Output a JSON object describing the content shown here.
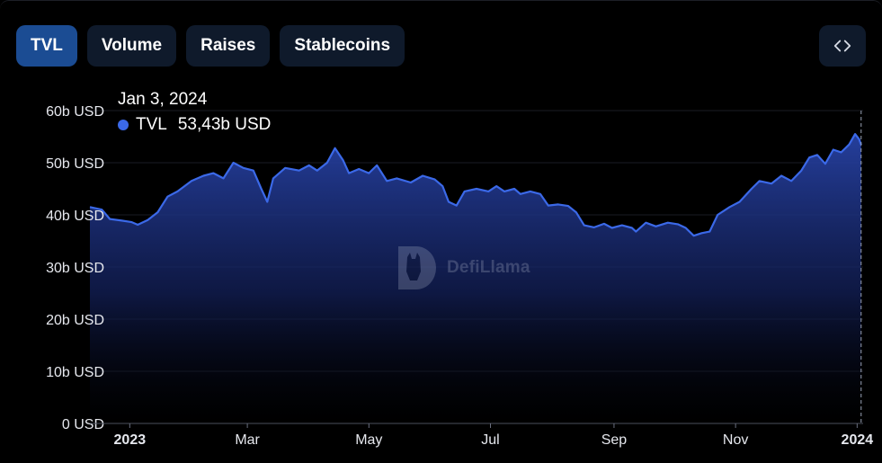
{
  "tabs": [
    {
      "label": "TVL",
      "active": true
    },
    {
      "label": "Volume",
      "active": false
    },
    {
      "label": "Raises",
      "active": false
    },
    {
      "label": "Stablecoins",
      "active": false
    }
  ],
  "embed_icon": "code-brackets-icon",
  "tooltip": {
    "date": "Jan 3, 2024",
    "series": "TVL",
    "value": "53,43b USD"
  },
  "watermark": {
    "text": "DefiLlama",
    "icon": "llama-logo-icon"
  },
  "colors": {
    "line": "#3b69e8",
    "area_top": "#2742a5",
    "background": "#000000",
    "tab_active": "#1b4c93",
    "tab_inactive": "#0f1a2b"
  },
  "chart_data": {
    "type": "area",
    "title": "",
    "xlabel": "",
    "ylabel": "",
    "ylim": [
      0,
      60
    ],
    "y_ticks": [
      {
        "value": 0,
        "label": "0 USD"
      },
      {
        "value": 10,
        "label": "10b USD"
      },
      {
        "value": 20,
        "label": "20b USD"
      },
      {
        "value": 30,
        "label": "30b USD"
      },
      {
        "value": 40,
        "label": "40b USD"
      },
      {
        "value": 50,
        "label": "50b USD"
      },
      {
        "value": 60,
        "label": "60b USD"
      }
    ],
    "x_ticks": [
      {
        "date": "2023-01-01",
        "label": "2023",
        "bold": true
      },
      {
        "date": "2023-03-01",
        "label": "Mar",
        "bold": false
      },
      {
        "date": "2023-05-01",
        "label": "May",
        "bold": false
      },
      {
        "date": "2023-07-01",
        "label": "Jul",
        "bold": false
      },
      {
        "date": "2023-09-01",
        "label": "Sep",
        "bold": false
      },
      {
        "date": "2023-11-01",
        "label": "Nov",
        "bold": false
      },
      {
        "date": "2024-01-01",
        "label": "2024",
        "bold": true
      }
    ],
    "x_range": [
      "2022-12-12",
      "2024-01-04"
    ],
    "grid": true,
    "legend": "none",
    "hover_date": "2024-01-03",
    "series": [
      {
        "name": "TVL",
        "unit": "b USD",
        "points": [
          [
            "2022-12-12",
            41.5
          ],
          [
            "2022-12-18",
            41.0
          ],
          [
            "2022-12-22",
            39.2
          ],
          [
            "2022-12-28",
            38.9
          ],
          [
            "2023-01-02",
            38.6
          ],
          [
            "2023-01-05",
            38.1
          ],
          [
            "2023-01-10",
            39.0
          ],
          [
            "2023-01-15",
            40.5
          ],
          [
            "2023-01-20",
            43.5
          ],
          [
            "2023-01-25",
            44.5
          ],
          [
            "2023-02-01",
            46.5
          ],
          [
            "2023-02-07",
            47.5
          ],
          [
            "2023-02-12",
            48.0
          ],
          [
            "2023-02-17",
            47.0
          ],
          [
            "2023-02-22",
            50.0
          ],
          [
            "2023-02-27",
            49.0
          ],
          [
            "2023-03-04",
            48.5
          ],
          [
            "2023-03-08",
            45.0
          ],
          [
            "2023-03-11",
            42.5
          ],
          [
            "2023-03-14",
            47.0
          ],
          [
            "2023-03-20",
            49.0
          ],
          [
            "2023-03-27",
            48.5
          ],
          [
            "2023-04-01",
            49.5
          ],
          [
            "2023-04-05",
            48.5
          ],
          [
            "2023-04-10",
            50.0
          ],
          [
            "2023-04-14",
            52.8
          ],
          [
            "2023-04-18",
            50.5
          ],
          [
            "2023-04-21",
            48.0
          ],
          [
            "2023-04-26",
            48.8
          ],
          [
            "2023-05-01",
            48.0
          ],
          [
            "2023-05-05",
            49.5
          ],
          [
            "2023-05-10",
            46.5
          ],
          [
            "2023-05-15",
            47.0
          ],
          [
            "2023-05-22",
            46.2
          ],
          [
            "2023-05-28",
            47.5
          ],
          [
            "2023-06-03",
            46.8
          ],
          [
            "2023-06-07",
            45.5
          ],
          [
            "2023-06-10",
            42.5
          ],
          [
            "2023-06-14",
            41.8
          ],
          [
            "2023-06-18",
            44.5
          ],
          [
            "2023-06-24",
            45.0
          ],
          [
            "2023-06-30",
            44.5
          ],
          [
            "2023-07-04",
            45.5
          ],
          [
            "2023-07-08",
            44.5
          ],
          [
            "2023-07-13",
            45.0
          ],
          [
            "2023-07-16",
            44.0
          ],
          [
            "2023-07-21",
            44.5
          ],
          [
            "2023-07-26",
            44.0
          ],
          [
            "2023-07-30",
            41.8
          ],
          [
            "2023-08-04",
            42.0
          ],
          [
            "2023-08-09",
            41.7
          ],
          [
            "2023-08-13",
            40.5
          ],
          [
            "2023-08-17",
            38.0
          ],
          [
            "2023-08-22",
            37.6
          ],
          [
            "2023-08-27",
            38.3
          ],
          [
            "2023-08-31",
            37.5
          ],
          [
            "2023-09-05",
            38.0
          ],
          [
            "2023-09-10",
            37.5
          ],
          [
            "2023-09-12",
            36.8
          ],
          [
            "2023-09-17",
            38.5
          ],
          [
            "2023-09-22",
            37.8
          ],
          [
            "2023-09-28",
            38.5
          ],
          [
            "2023-10-03",
            38.2
          ],
          [
            "2023-10-07",
            37.5
          ],
          [
            "2023-10-11",
            36.0
          ],
          [
            "2023-10-15",
            36.5
          ],
          [
            "2023-10-19",
            36.8
          ],
          [
            "2023-10-23",
            40.0
          ],
          [
            "2023-10-29",
            41.5
          ],
          [
            "2023-11-03",
            42.5
          ],
          [
            "2023-11-09",
            45.0
          ],
          [
            "2023-11-13",
            46.5
          ],
          [
            "2023-11-19",
            46.0
          ],
          [
            "2023-11-24",
            47.5
          ],
          [
            "2023-11-29",
            46.5
          ],
          [
            "2023-12-04",
            48.5
          ],
          [
            "2023-12-08",
            51.0
          ],
          [
            "2023-12-12",
            51.5
          ],
          [
            "2023-12-16",
            49.8
          ],
          [
            "2023-12-20",
            52.5
          ],
          [
            "2023-12-24",
            52.0
          ],
          [
            "2023-12-28",
            53.5
          ],
          [
            "2023-12-31",
            55.5
          ],
          [
            "2024-01-02",
            54.5
          ],
          [
            "2024-01-03",
            53.43
          ]
        ]
      }
    ]
  }
}
